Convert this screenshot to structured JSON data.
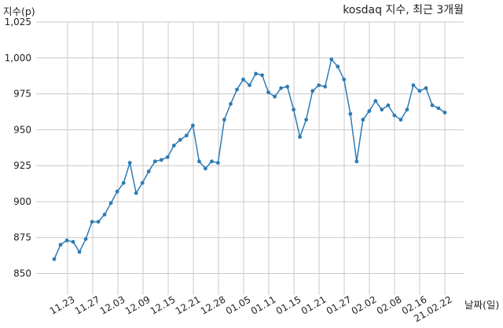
{
  "chart_data": {
    "type": "line",
    "title": "kosdaq 지수, 최근 3개월",
    "ylabel": "지수(p)",
    "xlabel": "날짜(일)",
    "ylim": [
      835,
      1025
    ],
    "grid": true,
    "x_ticks": [
      "11.23",
      "11.27",
      "12.03",
      "12.09",
      "12.15",
      "12.21",
      "12.28",
      "01.05",
      "01.11",
      "01.15",
      "01.21",
      "01.27",
      "02.02",
      "02.08",
      "02.16",
      "21.02.22"
    ],
    "y_ticks": [
      850,
      875,
      900,
      925,
      950,
      975,
      "1,000",
      "1,025"
    ],
    "y_tick_values": [
      850,
      875,
      900,
      925,
      950,
      975,
      1000,
      1025
    ],
    "color": "#2e7bb4",
    "series": [
      {
        "values": [
          860,
          870,
          873,
          872,
          865,
          874,
          886,
          886,
          891,
          899,
          907,
          913,
          927,
          906,
          913,
          921,
          928,
          929,
          931,
          939,
          943,
          946,
          953,
          928,
          923,
          928,
          927,
          957,
          968,
          978,
          985,
          981,
          989,
          988,
          976,
          973,
          979,
          980,
          964,
          945,
          957,
          977,
          981,
          980,
          999,
          994,
          985,
          961,
          928,
          957,
          963,
          970,
          964,
          967,
          960,
          957,
          964,
          981,
          977,
          979,
          967,
          965,
          962
        ]
      }
    ]
  }
}
